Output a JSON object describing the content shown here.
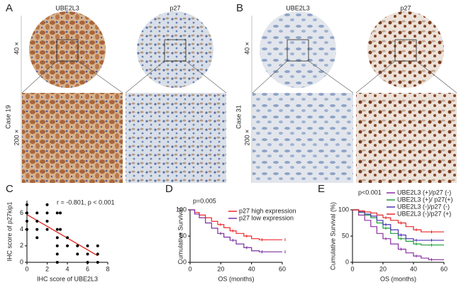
{
  "panels": [
    {
      "label": "A",
      "columns": [
        "UBE2L3",
        "p27"
      ],
      "case": "Case 19",
      "magnifications": [
        "40 ×",
        "200 ×"
      ]
    },
    {
      "label": "B",
      "columns": [
        "UBE2L3",
        "p27"
      ],
      "case": "Case 31",
      "magnifications": [
        "40 ×",
        "200 ×"
      ]
    }
  ],
  "chart_data": [
    {
      "type": "scatter",
      "label": "C",
      "annotation": "r = -0.801, p < 0.001",
      "x_label": "IHC score of UBE2L3",
      "y_label": "IHC score of p27kip1",
      "xlim": [
        0,
        8
      ],
      "xticks": [
        0,
        2,
        4,
        6,
        8
      ],
      "ylim": [
        0,
        7.5
      ],
      "yticks": [
        0,
        2,
        4,
        6
      ],
      "color": "#000000",
      "fit_color": "#e0201b",
      "x": [
        0,
        0,
        0,
        0,
        1,
        1,
        1,
        1,
        2,
        2,
        2,
        2,
        3,
        3,
        3,
        3,
        3,
        3,
        3.3,
        3.3,
        4,
        4,
        5,
        5,
        6,
        6,
        6,
        7,
        7,
        7
      ],
      "values": [
        7,
        6,
        5,
        4,
        6,
        5,
        4,
        3,
        7,
        6,
        5,
        4,
        6,
        4,
        3,
        2,
        1,
        0,
        6,
        4,
        3,
        2,
        2,
        1,
        2,
        1,
        0,
        2,
        1,
        0
      ],
      "fit": {
        "x": [
          0,
          7
        ],
        "y": [
          5.8,
          0.8
        ]
      }
    },
    {
      "type": "line",
      "label": "D",
      "annotation": "p=0.005",
      "x_label": "OS (months)",
      "y_label": "Cumulative Survival",
      "xlim": [
        0,
        60
      ],
      "xticks": [
        0,
        20,
        40,
        60
      ],
      "ylim": [
        0,
        100
      ],
      "yticks": [
        0,
        50,
        100
      ],
      "series": [
        {
          "name": "p27 high expression",
          "color": "#f0282a",
          "x": [
            0,
            3,
            6,
            10,
            14,
            18,
            22,
            26,
            30,
            35,
            40,
            45,
            50,
            60
          ],
          "values": [
            100,
            95,
            90,
            85,
            78,
            72,
            66,
            60,
            55,
            50,
            45,
            43,
            43,
            43
          ]
        },
        {
          "name": "p27 low expression",
          "color": "#7a2fa0",
          "x": [
            0,
            3,
            6,
            10,
            14,
            18,
            22,
            26,
            30,
            35,
            40,
            45,
            50,
            60
          ],
          "values": [
            100,
            92,
            85,
            75,
            65,
            55,
            48,
            42,
            35,
            28,
            22,
            20,
            20,
            20
          ]
        }
      ]
    },
    {
      "type": "line",
      "label": "E",
      "annotation": "p<0.001",
      "x_label": "OS (months)",
      "y_label": "Cumulative Survival (%)",
      "xlim": [
        0,
        60
      ],
      "xticks": [
        0,
        20,
        40,
        60
      ],
      "ylim": [
        0,
        100
      ],
      "yticks": [
        0,
        50,
        100
      ],
      "series": [
        {
          "name": "UBE2L3 (+)/p27 (-)",
          "color": "#8b2fa0",
          "x": [
            0,
            4,
            8,
            12,
            16,
            20,
            25,
            30,
            35,
            40,
            45,
            50,
            60
          ],
          "values": [
            100,
            90,
            80,
            68,
            55,
            45,
            35,
            25,
            18,
            12,
            8,
            5,
            5
          ]
        },
        {
          "name": "UBE2L3 (+)/ p27(+)",
          "color": "#1f9e3a",
          "x": [
            0,
            4,
            8,
            12,
            16,
            20,
            25,
            30,
            35,
            40,
            45,
            50,
            60
          ],
          "values": [
            100,
            95,
            90,
            85,
            75,
            65,
            55,
            45,
            40,
            35,
            33,
            33,
            33
          ]
        },
        {
          "name": "UBE2L3 (-)/p27 (-)",
          "color": "#4b32b0",
          "x": [
            0,
            4,
            8,
            12,
            16,
            20,
            25,
            30,
            35,
            40,
            45,
            50,
            60
          ],
          "values": [
            100,
            96,
            92,
            88,
            80,
            72,
            62,
            52,
            45,
            42,
            42,
            42,
            42
          ]
        },
        {
          "name": "UBE2L3 (-)/p27 (+)",
          "color": "#e8262a",
          "x": [
            0,
            4,
            8,
            12,
            16,
            20,
            25,
            30,
            35,
            40,
            45,
            50,
            60
          ],
          "values": [
            100,
            98,
            96,
            94,
            90,
            85,
            80,
            75,
            68,
            62,
            58,
            58,
            58
          ]
        }
      ]
    }
  ]
}
